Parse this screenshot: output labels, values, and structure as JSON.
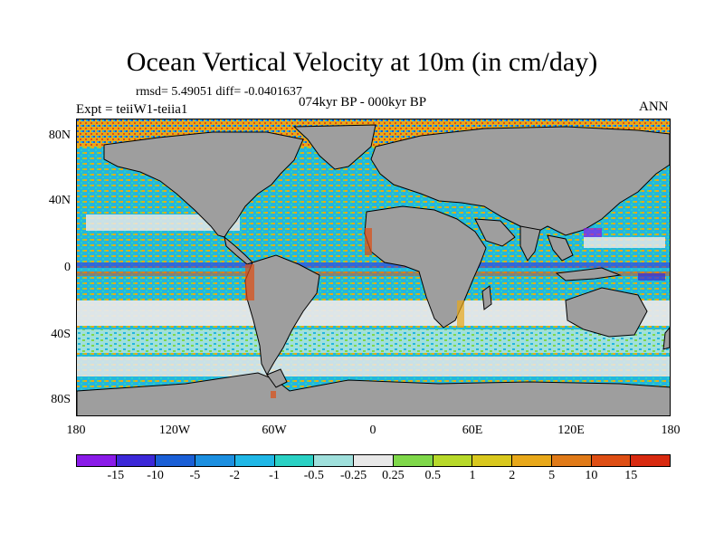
{
  "title": "Ocean Vertical Velocity at 10m (in cm/day)",
  "stats": "rmsd= 5.49051 diff= -0.0401637",
  "experiment": "Expt = teiiW1-teiia1",
  "period": "074kyr BP - 000kyr BP",
  "season": "ANN",
  "lat_labels": [
    "80N",
    "40N",
    "0",
    "40S",
    "80S"
  ],
  "lon_labels": [
    "180",
    "120W",
    "60W",
    "0",
    "60E",
    "120E",
    "180"
  ],
  "colorbar": {
    "labels": [
      "-15",
      "-10",
      "-5",
      "-2",
      "-1",
      "-0.5",
      "-0.25",
      "0.25",
      "0.5",
      "1",
      "2",
      "5",
      "10",
      "15"
    ],
    "colors": [
      "#8a1be8",
      "#3c28d8",
      "#1a5fd6",
      "#1c8fe0",
      "#20b7e6",
      "#2ad1c4",
      "#9fe0dc",
      "#e8e8e8",
      "#7fd84a",
      "#b7d92a",
      "#d9c81e",
      "#e8a81a",
      "#e07a18",
      "#de4e14",
      "#d82a10"
    ]
  },
  "colors": {
    "land": "#9e9e9e",
    "ocean_dominant": "#23b6de",
    "coastline": "#000000"
  }
}
